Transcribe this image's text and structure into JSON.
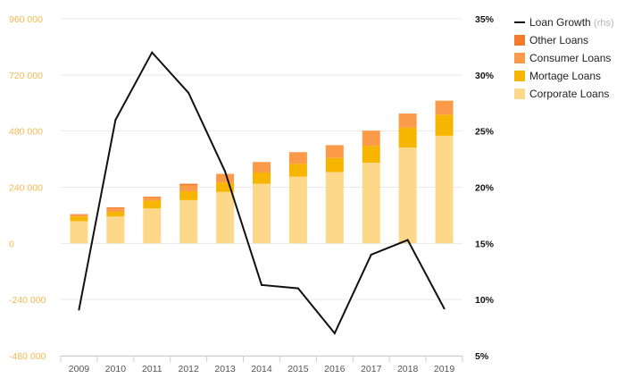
{
  "chart_data": {
    "type": "bar",
    "categories": [
      "2009",
      "2010",
      "2011",
      "2012",
      "2013",
      "2014",
      "2015",
      "2016",
      "2017",
      "2018",
      "2019"
    ],
    "series": [
      {
        "name": "Corporate Loans",
        "color": "#fdd88a",
        "values": [
          95000,
          115000,
          150000,
          185000,
          220000,
          255000,
          285000,
          305000,
          345000,
          410000,
          460000
        ]
      },
      {
        "name": "Mortage Loans",
        "color": "#f7b500",
        "values": [
          20000,
          20000,
          33000,
          38000,
          40000,
          48000,
          55000,
          60000,
          72000,
          85000,
          90000
        ]
      },
      {
        "name": "Consumer Loans",
        "color": "#fb9a48",
        "values": [
          8000,
          15000,
          15000,
          25000,
          35000,
          45000,
          50000,
          55000,
          65000,
          60000,
          60000
        ]
      },
      {
        "name": "Other Loans",
        "color": "#f47a2c",
        "values": [
          2000,
          4000,
          2000,
          7000,
          2000,
          0,
          0,
          0,
          0,
          0,
          0
        ]
      }
    ],
    "line_series": {
      "name": "Loan Growth",
      "suffix": "(rhs)",
      "color": "#111111",
      "values": [
        9.1,
        26.0,
        32.0,
        28.4,
        21.4,
        11.3,
        11.0,
        7.0,
        14.0,
        15.3,
        9.2
      ]
    },
    "left_axis": {
      "min": -480000,
      "max": 960000,
      "ticks": [
        -480000,
        -240000,
        0,
        240000,
        480000,
        720000,
        960000
      ],
      "tick_labels": [
        "-480 000",
        "-240 000",
        "0",
        "240 000",
        "480 000",
        "720 000",
        "960 000"
      ],
      "color": "#f5b94f"
    },
    "right_axis": {
      "min": 5,
      "max": 35,
      "ticks": [
        5,
        10,
        15,
        20,
        25,
        30,
        35
      ],
      "tick_labels": [
        "5%",
        "10%",
        "15%",
        "20%",
        "25%",
        "30%",
        "35%"
      ]
    },
    "grid": true,
    "legend_position": "top-right",
    "title": "",
    "xlabel": "",
    "ylabel": ""
  }
}
